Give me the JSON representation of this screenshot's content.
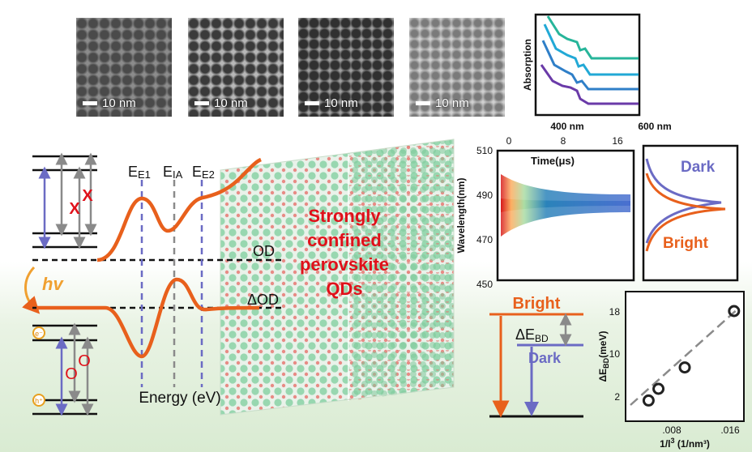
{
  "tem_images": [
    {
      "scale_label": "10 nm"
    },
    {
      "scale_label": "10 nm"
    },
    {
      "scale_label": "10 nm"
    },
    {
      "scale_label": "10 nm"
    }
  ],
  "absorption_inset": {
    "ylabel": "Absorption",
    "x_start": "400 nm",
    "x_end": "600 nm",
    "trace_colors": [
      "#27b59a",
      "#22a9d6",
      "#2f7fc8",
      "#6a3aa8"
    ]
  },
  "level_diagram": {
    "x_marks": [
      "X",
      "X"
    ],
    "o_marks": [
      "O",
      "O"
    ],
    "electron": "e⁻",
    "hole": "h⁺",
    "photon": "hv"
  },
  "spectrum_panel": {
    "ee1": {
      "main": "E",
      "sub": "E1"
    },
    "eia": {
      "main": "E",
      "sub": "IA"
    },
    "ee2": {
      "main": "E",
      "sub": "E2"
    },
    "od_label": "OD",
    "dod_label": "ΔOD",
    "xlabel": "Energy (eV)"
  },
  "cube_text": [
    "Strongly",
    "confined",
    "perovskite",
    "QDs"
  ],
  "time_map": {
    "top_label": "Time(μs)",
    "top_ticks": [
      "0",
      "8",
      "16"
    ],
    "ylabel": "Wavelength(nm)",
    "y_ticks": [
      "510",
      "490",
      "470",
      "450"
    ]
  },
  "emission_panel": {
    "dark": "Dark",
    "bright": "Bright"
  },
  "energy_levels": {
    "bright": "Bright",
    "dark": "Dark",
    "gap": {
      "main": "ΔE",
      "sub": "BD"
    }
  },
  "splitting_plot": {
    "chart_data": {
      "type": "scatter",
      "x": [
        0.0035,
        0.005,
        0.009,
        0.0165
      ],
      "y": [
        3.2,
        5.0,
        8.3,
        17.0
      ],
      "xlabel": "1/l³ (1/nm³)",
      "ylabel": "ΔE_BD(meV)",
      "x_ticks": [
        ".008",
        ".016"
      ],
      "y_ticks": [
        "2",
        "10",
        "18"
      ],
      "xlim": [
        0,
        0.018
      ],
      "ylim": [
        0,
        20
      ]
    },
    "ylabel_main": "ΔE",
    "ylabel_sub": "BD",
    "ylabel_unit": "(meV)",
    "xlabel_main": "1/l",
    "xlabel_sup": "3",
    "xlabel_unit": " (1/nm³)"
  },
  "colors": {
    "orange": "#e8601c",
    "purple": "#6b6bc4",
    "red": "#e0101a",
    "gray": "#8a8a8a"
  }
}
